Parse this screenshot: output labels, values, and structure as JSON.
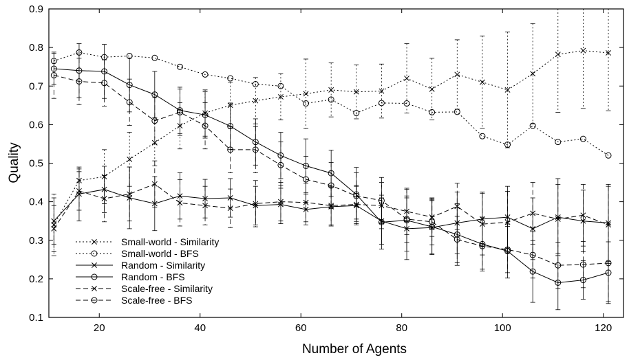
{
  "chart_data": {
    "type": "line",
    "title": "",
    "xlabel": "Number of Agents",
    "ylabel": "Quality",
    "xlim": [
      10,
      124
    ],
    "ylim": [
      0.1,
      0.9
    ],
    "x_ticks": [
      20,
      40,
      60,
      80,
      100,
      120
    ],
    "x_tick_labels": [
      "20",
      "40",
      "60",
      "80",
      "100",
      "120"
    ],
    "y_ticks": [
      0.1,
      0.2,
      0.3,
      0.4,
      0.5,
      0.6,
      0.7,
      0.8,
      0.9
    ],
    "y_tick_labels": [
      "0.1",
      "0.2",
      "0.3",
      "0.4",
      "0.5",
      "0.6",
      "0.7",
      "0.8",
      "0.9"
    ],
    "grid": false,
    "legend_position": "bottom-left",
    "x": [
      11,
      16,
      21,
      26,
      31,
      36,
      41,
      46,
      51,
      56,
      61,
      66,
      71,
      76,
      81,
      86,
      91,
      96,
      101,
      106,
      111,
      116,
      121
    ],
    "series": [
      {
        "name": "Small-world - Similarity",
        "line_style": "dotted",
        "marker": "x",
        "values": [
          0.34,
          0.455,
          0.465,
          0.51,
          0.553,
          0.597,
          0.63,
          0.65,
          0.662,
          0.672,
          0.68,
          0.69,
          0.685,
          0.687,
          0.72,
          0.692,
          0.73,
          0.71,
          0.69,
          0.732,
          0.782,
          0.792,
          0.786
        ],
        "errors": [
          0.08,
          0.03,
          0.07,
          0.07,
          0.06,
          0.06,
          0.06,
          0.06,
          0.06,
          0.06,
          0.09,
          0.07,
          0.07,
          0.07,
          0.09,
          0.08,
          0.09,
          0.12,
          0.15,
          0.13,
          0.15,
          0.15,
          0.15
        ]
      },
      {
        "name": "Small-world - BFS",
        "line_style": "dotted",
        "marker": "circle",
        "values": [
          0.765,
          0.787,
          0.775,
          0.778,
          0.773,
          0.75,
          0.73,
          0.72,
          0.705,
          0.7,
          0.655,
          0.665,
          0.63,
          0.656,
          0.655,
          0.632,
          0.633,
          0.57,
          0.548,
          0.597,
          0.555,
          0.563,
          0.52
        ]
      },
      {
        "name": "Random - Similarity",
        "line_style": "solid",
        "marker": "x",
        "values": [
          0.35,
          0.42,
          0.432,
          0.41,
          0.395,
          0.415,
          0.408,
          0.41,
          0.39,
          0.393,
          0.38,
          0.387,
          0.39,
          0.35,
          0.33,
          0.333,
          0.345,
          0.355,
          0.36,
          0.33,
          0.36,
          0.35,
          0.345
        ],
        "errors": [
          0.06,
          0.07,
          0.06,
          0.08,
          0.07,
          0.06,
          0.05,
          0.05,
          0.05,
          0.05,
          0.04,
          0.05,
          0.05,
          0.06,
          0.08,
          0.07,
          0.08,
          0.07,
          0.08,
          0.08,
          0.1,
          0.08,
          0.1
        ]
      },
      {
        "name": "Random - BFS",
        "line_style": "solid",
        "marker": "circle",
        "values": [
          0.745,
          0.74,
          0.738,
          0.703,
          0.678,
          0.637,
          0.625,
          0.596,
          0.555,
          0.52,
          0.493,
          0.474,
          0.419,
          0.347,
          0.352,
          0.335,
          0.315,
          0.29,
          0.272,
          0.219,
          0.19,
          0.197,
          0.216
        ],
        "errors": [
          0.04,
          0.07,
          0.07,
          0.07,
          0.06,
          0.06,
          0.06,
          0.06,
          0.06,
          0.06,
          0.07,
          0.06,
          0.07,
          0.07,
          0.08,
          0.07,
          0.08,
          0.07,
          0.07,
          0.08,
          0.07,
          0.05,
          0.08
        ]
      },
      {
        "name": "Scale-free - Similarity",
        "line_style": "dashed",
        "marker": "x",
        "values": [
          0.33,
          0.428,
          0.408,
          0.42,
          0.446,
          0.397,
          0.39,
          0.383,
          0.395,
          0.4,
          0.398,
          0.39,
          0.393,
          0.39,
          0.375,
          0.36,
          0.388,
          0.342,
          0.347,
          0.37,
          0.355,
          0.365,
          0.34
        ],
        "errors": [
          0.06,
          0.05,
          0.06,
          0.07,
          0.06,
          0.06,
          0.05,
          0.05,
          0.06,
          0.05,
          0.05,
          0.05,
          0.05,
          0.06,
          0.06,
          0.05,
          0.06,
          0.08,
          0.08,
          0.08,
          0.09,
          0.08,
          0.1
        ]
      },
      {
        "name": "Scale-free - BFS",
        "line_style": "dashed",
        "marker": "circle",
        "values": [
          0.728,
          0.712,
          0.708,
          0.658,
          0.61,
          0.632,
          0.597,
          0.535,
          0.535,
          0.495,
          0.458,
          0.442,
          0.415,
          0.403,
          0.355,
          0.348,
          0.302,
          0.285,
          0.276,
          0.262,
          0.235,
          0.237,
          0.241
        ],
        "errors": [
          0.06,
          0.06,
          0.06,
          0.06,
          0.06,
          0.06,
          0.06,
          0.06,
          0.06,
          0.06,
          0.06,
          0.06,
          0.06,
          0.06,
          0.06,
          0.06,
          0.06,
          0.06,
          0.06,
          0.06,
          0.06,
          0.06,
          0.1
        ]
      }
    ]
  }
}
